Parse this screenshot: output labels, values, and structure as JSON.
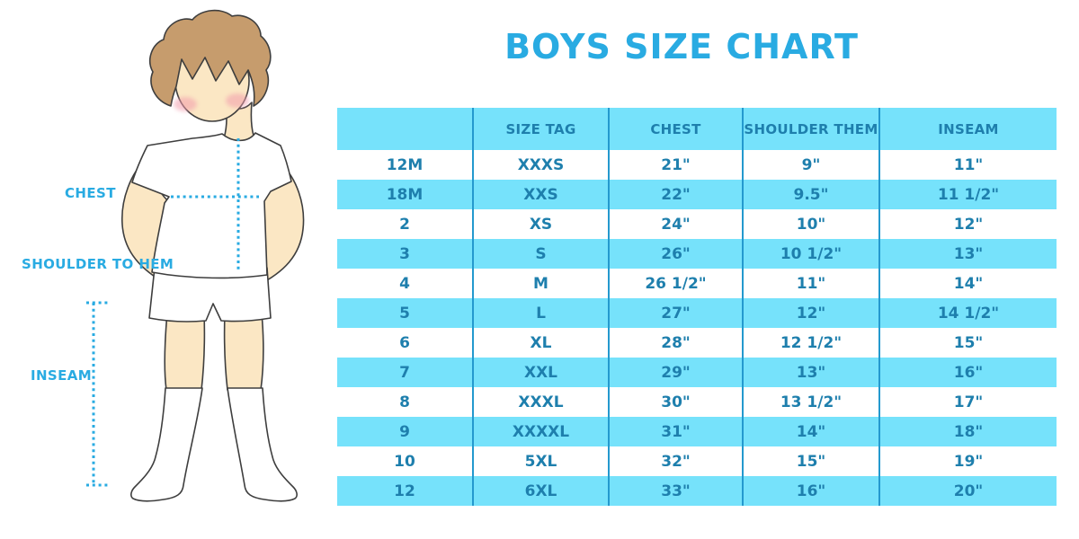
{
  "title": "BOYS SIZE CHART",
  "figure_labels": {
    "chest": "CHEST",
    "shoulder_to_hem": "SHOULDER TO HEM",
    "inseam": "INSEAM"
  },
  "colors": {
    "accent_blue": "#29ABE2",
    "light_blue_row": "#76E2FB",
    "divider_blue": "#2499CE",
    "table_text_blue": "#1E7FAD",
    "skin": "#FBE7C4",
    "hair": "#C69C6D"
  },
  "chart_data": {
    "type": "table",
    "title": "BOYS SIZE CHART",
    "columns": [
      "",
      "SIZE TAG",
      "CHEST",
      "SHOULDER THEM",
      "INSEAM"
    ],
    "rows": [
      [
        "12M",
        "XXXS",
        "21\"",
        "9\"",
        "11\""
      ],
      [
        "18M",
        "XXS",
        "22\"",
        "9.5\"",
        "11 1/2\""
      ],
      [
        "2",
        "XS",
        "24\"",
        "10\"",
        "12\""
      ],
      [
        "3",
        "S",
        "26\"",
        "10 1/2\"",
        "13\""
      ],
      [
        "4",
        "M",
        "26 1/2\"",
        "11\"",
        "14\""
      ],
      [
        "5",
        "L",
        "27\"",
        "12\"",
        "14 1/2\""
      ],
      [
        "6",
        "XL",
        "28\"",
        "12 1/2\"",
        "15\""
      ],
      [
        "7",
        "XXL",
        "29\"",
        "13\"",
        "16\""
      ],
      [
        "8",
        "XXXL",
        "30\"",
        "13 1/2\"",
        "17\""
      ],
      [
        "9",
        "XXXXL",
        "31\"",
        "14\"",
        "18\""
      ],
      [
        "10",
        "5XL",
        "32\"",
        "15\"",
        "19\""
      ],
      [
        "12",
        "6XL",
        "33\"",
        "16\"",
        "20\""
      ]
    ]
  }
}
